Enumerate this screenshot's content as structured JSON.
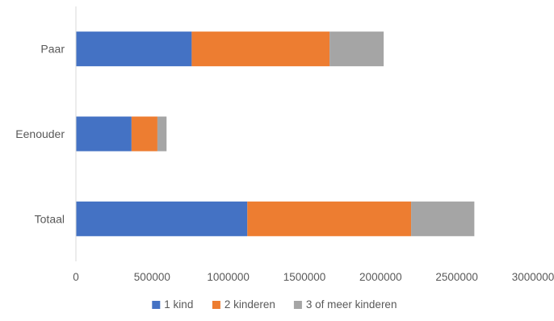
{
  "chart_data": {
    "type": "bar",
    "orientation": "horizontal",
    "stacked": true,
    "categories": [
      "Totaal",
      "Eenouder",
      "Paar"
    ],
    "series": [
      {
        "name": "1 kind",
        "color": "#4472C4",
        "values": [
          1125000,
          365000,
          760000
        ]
      },
      {
        "name": "2 kinderen",
        "color": "#ED7D31",
        "values": [
          1075000,
          170000,
          905000
        ]
      },
      {
        "name": "3 of meer kinderen",
        "color": "#A5A5A5",
        "values": [
          415000,
          60000,
          355000
        ]
      }
    ],
    "xlim": [
      0,
      3000000
    ],
    "xticks": [
      0,
      500000,
      1000000,
      1500000,
      2000000,
      2500000,
      3000000
    ],
    "xtick_labels": [
      "0",
      "500000",
      "1000000",
      "1500000",
      "2000000",
      "2500000",
      "3000000"
    ],
    "grid": false,
    "legend_position": "bottom"
  }
}
